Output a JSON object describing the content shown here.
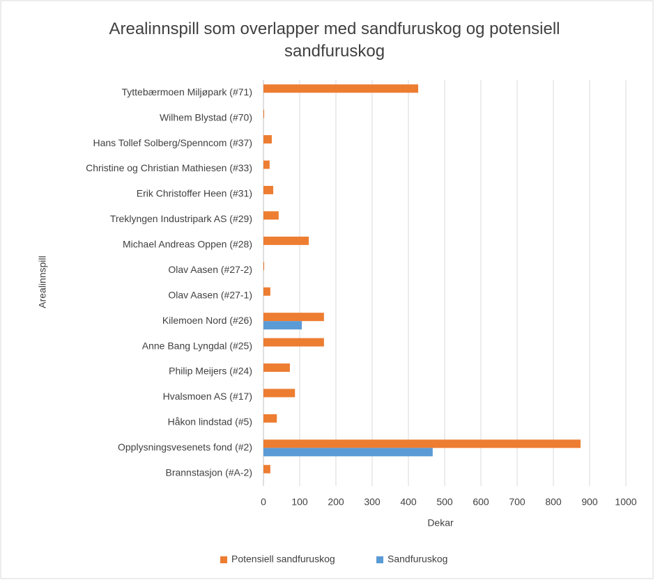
{
  "chart_data": {
    "type": "hbar",
    "title": "Arealinnspill som overlapper med sandfuruskog og potensiell sandfuruskog",
    "x_label": "Dekar",
    "y_label": "Arealinnspill",
    "categories": [
      "Tyttebærmoen Miljøpark (#71)",
      "Wilhem Blystad (#70)",
      "Hans Tollef Solberg/Spenncom (#37)",
      "Christine og Christian Mathiesen (#33)",
      "Erik Christoffer Heen (#31)",
      "Treklyngen Industripark AS (#29)",
      "Michael Andreas Oppen (#28)",
      "Olav Aasen (#27-2)",
      "Olav Aasen (#27-1)",
      "Kilemoen Nord (#26)",
      "Anne Bang Lyngdal (#25)",
      "Philip Meijers (#24)",
      "Hvalsmoen AS (#17)",
      "Håkon lindstad (#5)",
      "Opplysningsvesenets fond (#2)",
      "Brannstasjon (#A-2)"
    ],
    "series": [
      {
        "name": "Potensiell sandfuruskog",
        "color": "#ed7d31",
        "values": [
          427,
          2,
          23,
          17,
          27,
          42,
          125,
          2,
          19,
          167,
          167,
          73,
          87,
          37,
          875,
          19
        ]
      },
      {
        "name": "Sandfuruskog",
        "color": "#5b9bd5",
        "values": [
          null,
          null,
          null,
          null,
          null,
          null,
          null,
          null,
          null,
          106,
          null,
          null,
          null,
          null,
          467,
          null
        ]
      }
    ],
    "xlim": [
      0,
      1000
    ],
    "xticks": [
      0,
      100,
      200,
      300,
      400,
      500,
      600,
      700,
      800,
      900,
      1000
    ],
    "grid": true,
    "legend": "bottom"
  }
}
